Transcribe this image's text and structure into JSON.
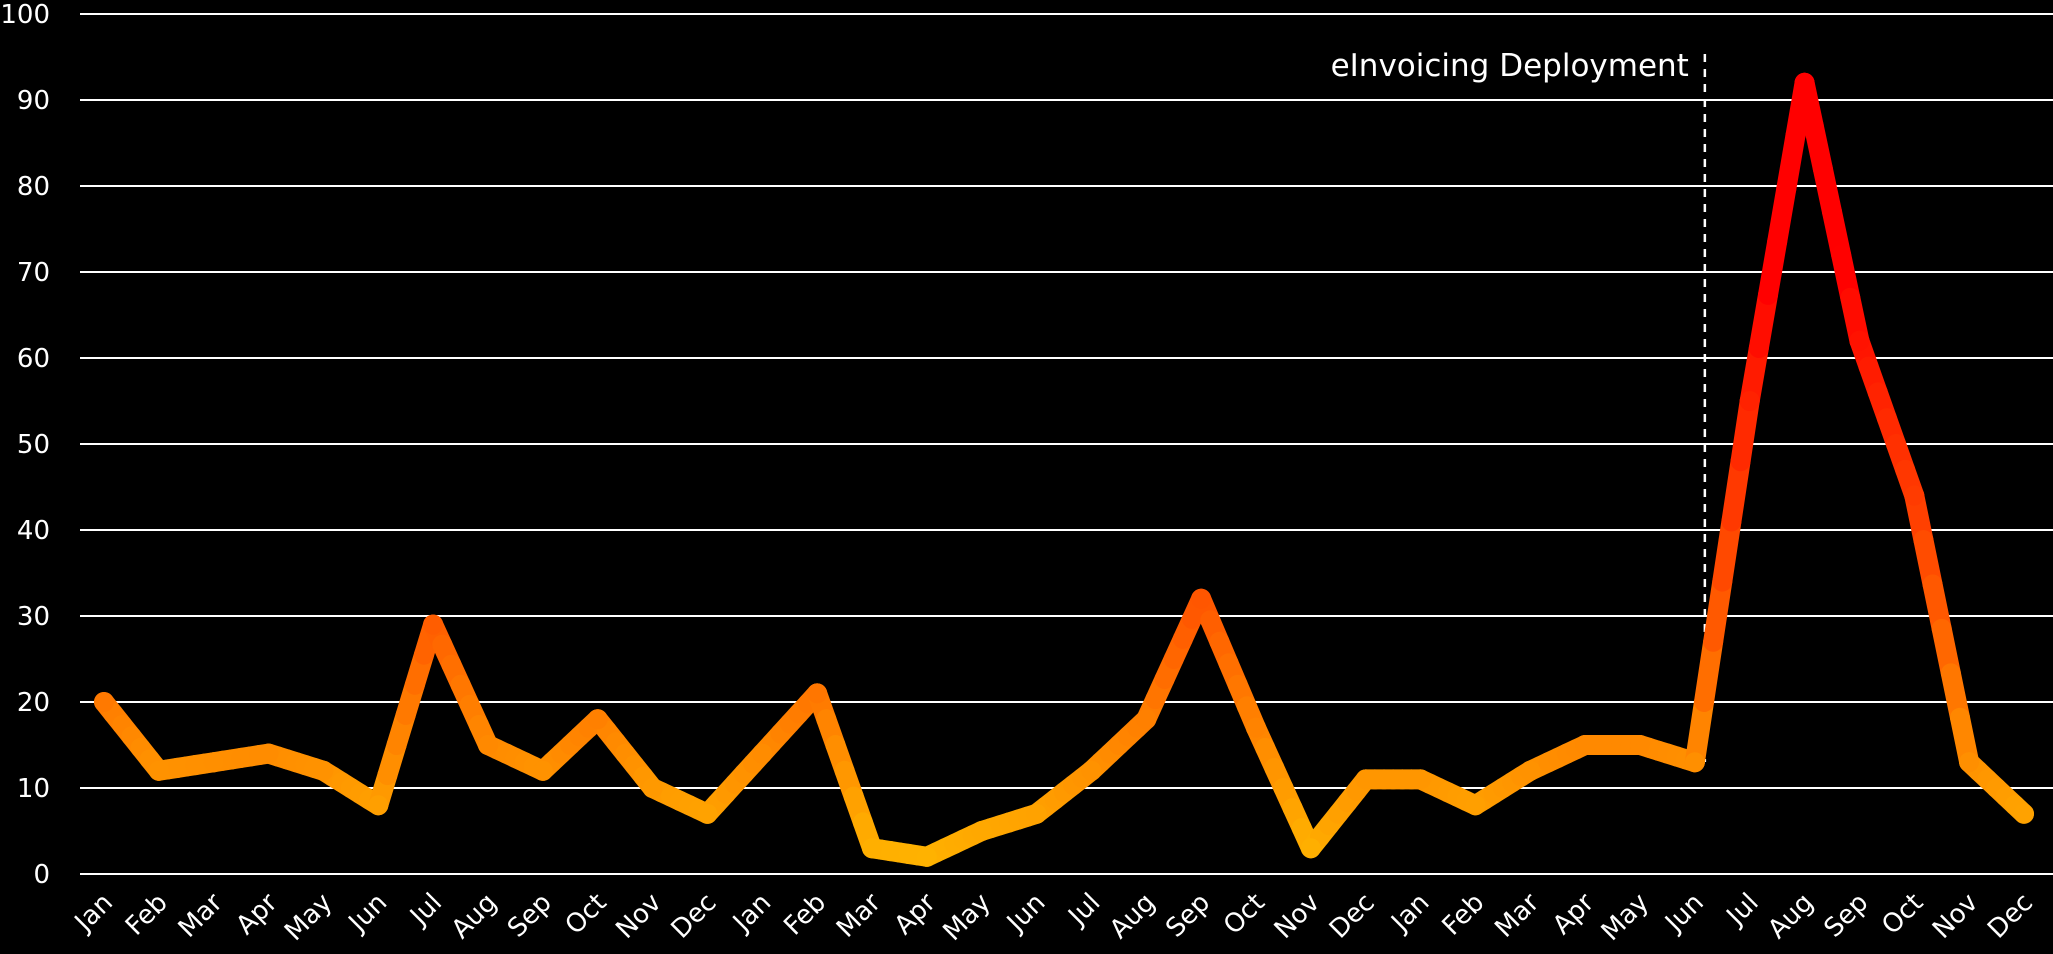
{
  "chart_data": {
    "type": "line",
    "title": "",
    "xlabel": "",
    "ylabel": "",
    "ylim": [
      0,
      100
    ],
    "yticks": [
      0,
      10,
      20,
      30,
      40,
      50,
      60,
      70,
      80,
      90,
      100
    ],
    "grid": "horizontal",
    "categories": [
      "Jan",
      "Feb",
      "Mar",
      "Apr",
      "May",
      "Jun",
      "Jul",
      "Aug",
      "Sep",
      "Oct",
      "Nov",
      "Dec",
      "Jan",
      "Feb",
      "Mar",
      "Apr",
      "May",
      "Jun",
      "Jul",
      "Aug",
      "Sep",
      "Oct",
      "Nov",
      "Dec",
      "Jan",
      "Feb",
      "Mar",
      "Apr",
      "May",
      "Jun",
      "Jul",
      "Aug",
      "Sep",
      "Oct",
      "Nov",
      "Dec"
    ],
    "series": [
      {
        "values": [
          20,
          12,
          13,
          14,
          12,
          8,
          29,
          15,
          12,
          18,
          10,
          7,
          14,
          21,
          3,
          2,
          5,
          7,
          12,
          18,
          32,
          17,
          3,
          11,
          11,
          8,
          12,
          15,
          15,
          13,
          55,
          92,
          62,
          44,
          13,
          7
        ]
      }
    ],
    "color_scale": {
      "low": "#ffb800",
      "mid": "#ff5a00",
      "high": "#ff0000"
    },
    "annotations": [
      {
        "type": "vline",
        "x_index": 29,
        "label": "eInvoicing Deployment",
        "style": "dashed"
      }
    ]
  }
}
